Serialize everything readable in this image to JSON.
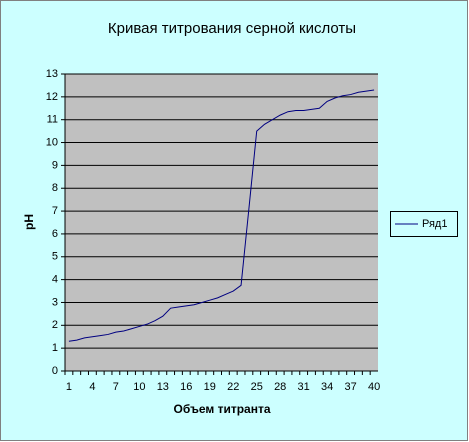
{
  "chart_data": {
    "type": "line",
    "title": "Кривая титрования серной кислоты",
    "x_label": "Объем титранта",
    "y_label": "pH",
    "categories": [
      "1",
      null,
      null,
      "4",
      null,
      null,
      "7",
      null,
      null,
      "10",
      null,
      null,
      "13",
      null,
      null,
      "16",
      null,
      null,
      "19",
      null,
      null,
      "22",
      null,
      null,
      "25",
      null,
      null,
      "28",
      null,
      null,
      "31",
      null,
      null,
      "34",
      null,
      null,
      "37",
      null,
      null,
      "40"
    ],
    "series": [
      {
        "name": "Ряд1",
        "color": "#000080",
        "values": [
          1.3,
          1.35,
          1.45,
          1.5,
          1.55,
          1.6,
          1.7,
          1.75,
          1.85,
          1.95,
          2.05,
          2.2,
          2.4,
          2.75,
          2.8,
          2.85,
          2.9,
          3.0,
          3.1,
          3.2,
          3.35,
          3.5,
          3.75,
          7.1,
          10.5,
          10.8,
          11.0,
          11.2,
          11.35,
          11.4,
          11.4,
          11.45,
          11.5,
          11.8,
          11.95,
          12.05,
          12.1,
          12.2,
          12.25,
          12.3
        ]
      }
    ],
    "ylim": [
      0,
      13
    ],
    "yticks": [
      0,
      1,
      2,
      3,
      4,
      5,
      6,
      7,
      8,
      9,
      10,
      11,
      12,
      13
    ],
    "grid": true,
    "legend": "right"
  }
}
